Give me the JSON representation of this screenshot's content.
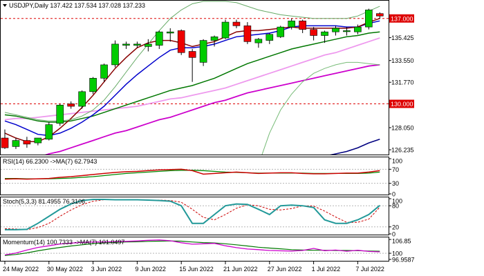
{
  "chart_data": {
    "type": "candlestick",
    "symbol": "USDJPY",
    "timeframe": "Daily",
    "ohlc_readout": {
      "open": "137.422",
      "high": "137.534",
      "low": "137.028",
      "close": "137.233"
    },
    "title": "USDJPY,Daily  137.422 137.534 137.028 137.233",
    "x_labels": [
      "24 May 2022",
      "30 May 2022",
      "3 Jun 2022",
      "9 Jun 2022",
      "15 Jun 2022",
      "21 Jun 2022",
      "27 Jun 2022",
      "1 Jul 2022",
      "7 Jul 2022"
    ],
    "x_label_index": [
      0,
      4,
      8,
      12,
      16,
      20,
      24,
      28,
      32
    ],
    "price_ticks": [
      "137.000",
      "135.425",
      "133.550",
      "131.770",
      "130.000",
      "128.050",
      "126.235"
    ],
    "price_tick_values": [
      137.0,
      135.425,
      133.55,
      131.77,
      130.0,
      128.05,
      126.235
    ],
    "price_range": [
      125.9,
      138.4
    ],
    "reference_levels": [
      {
        "value": 137.0,
        "label": "137.000",
        "color": "#dd0000"
      },
      {
        "value": 130.0,
        "label": "130.000",
        "color": "#dd0000"
      }
    ],
    "candles": [
      {
        "o": 127.2,
        "h": 127.9,
        "l": 126.3,
        "c": 126.4
      },
      {
        "o": 126.5,
        "h": 127.2,
        "l": 126.3,
        "c": 127.0
      },
      {
        "o": 127.0,
        "h": 127.3,
        "l": 126.4,
        "c": 126.7
      },
      {
        "o": 126.8,
        "h": 127.2,
        "l": 126.6,
        "c": 127.2
      },
      {
        "o": 127.1,
        "h": 128.5,
        "l": 127.0,
        "c": 128.3
      },
      {
        "o": 128.4,
        "h": 130.0,
        "l": 128.2,
        "c": 129.9
      },
      {
        "o": 130.0,
        "h": 130.2,
        "l": 129.6,
        "c": 129.8
      },
      {
        "o": 129.8,
        "h": 131.1,
        "l": 129.6,
        "c": 131.0
      },
      {
        "o": 131.0,
        "h": 132.2,
        "l": 130.8,
        "c": 132.1
      },
      {
        "o": 132.1,
        "h": 133.3,
        "l": 131.8,
        "c": 133.2
      },
      {
        "o": 133.2,
        "h": 135.2,
        "l": 133.0,
        "c": 134.9
      },
      {
        "o": 134.8,
        "h": 135.1,
        "l": 134.5,
        "c": 134.9
      },
      {
        "o": 134.8,
        "h": 135.1,
        "l": 134.6,
        "c": 134.9
      },
      {
        "o": 134.7,
        "h": 135.3,
        "l": 134.3,
        "c": 134.9
      },
      {
        "o": 134.8,
        "h": 136.0,
        "l": 134.5,
        "c": 135.9
      },
      {
        "o": 135.8,
        "h": 136.2,
        "l": 135.1,
        "c": 135.9
      },
      {
        "o": 136.0,
        "h": 136.1,
        "l": 134.0,
        "c": 134.2
      },
      {
        "o": 134.3,
        "h": 134.5,
        "l": 131.8,
        "c": 133.8
      },
      {
        "o": 133.4,
        "h": 135.3,
        "l": 133.1,
        "c": 135.2
      },
      {
        "o": 135.2,
        "h": 135.6,
        "l": 134.7,
        "c": 135.5
      },
      {
        "o": 135.4,
        "h": 136.9,
        "l": 135.3,
        "c": 136.7
      },
      {
        "o": 136.7,
        "h": 136.9,
        "l": 136.2,
        "c": 136.4
      },
      {
        "o": 136.4,
        "h": 136.7,
        "l": 134.9,
        "c": 135.1
      },
      {
        "o": 135.0,
        "h": 135.4,
        "l": 134.6,
        "c": 135.3
      },
      {
        "o": 135.2,
        "h": 135.8,
        "l": 134.9,
        "c": 135.7
      },
      {
        "o": 135.5,
        "h": 136.4,
        "l": 135.4,
        "c": 136.3
      },
      {
        "o": 136.3,
        "h": 137.0,
        "l": 136.1,
        "c": 136.8
      },
      {
        "o": 136.8,
        "h": 136.9,
        "l": 135.8,
        "c": 136.1
      },
      {
        "o": 136.1,
        "h": 136.3,
        "l": 135.2,
        "c": 135.6
      },
      {
        "o": 135.6,
        "h": 136.0,
        "l": 135.0,
        "c": 135.9
      },
      {
        "o": 135.9,
        "h": 136.4,
        "l": 135.6,
        "c": 136.2
      },
      {
        "o": 136.0,
        "h": 136.3,
        "l": 135.6,
        "c": 136.0
      },
      {
        "o": 135.9,
        "h": 136.5,
        "l": 135.7,
        "c": 136.3
      },
      {
        "o": 136.3,
        "h": 137.8,
        "l": 136.1,
        "c": 137.7
      },
      {
        "o": 137.4,
        "h": 137.5,
        "l": 137.0,
        "c": 137.2
      }
    ],
    "overlays": [
      {
        "color": "#000080",
        "width": 1.6,
        "values": [
          null,
          null,
          null,
          null,
          null,
          null,
          null,
          null,
          null,
          null,
          null,
          null,
          null,
          null,
          null,
          null,
          null,
          null,
          null,
          null,
          null,
          null,
          null,
          null,
          null,
          null,
          null,
          null,
          null,
          125.7,
          125.9,
          126.1,
          126.4,
          126.8,
          127.1
        ]
      },
      {
        "color": "#cc00cc",
        "width": 1.8,
        "values": [
          124.8,
          125.0,
          125.3,
          125.6,
          125.9,
          126.1,
          126.4,
          126.7,
          127.0,
          127.3,
          127.6,
          127.8,
          128.1,
          128.4,
          128.7,
          128.9,
          129.2,
          129.5,
          129.8,
          130.1,
          130.3,
          130.6,
          130.9,
          131.1,
          131.3,
          131.5,
          131.7,
          131.9,
          132.1,
          132.3,
          132.5,
          132.7,
          132.9,
          133.1,
          133.2
        ]
      },
      {
        "color": "#ee99ee",
        "width": 1.8,
        "values": [
          128.7,
          128.8,
          128.8,
          128.9,
          129.0,
          129.1,
          129.2,
          129.3,
          129.4,
          129.5,
          129.6,
          129.7,
          129.8,
          130.0,
          130.2,
          130.4,
          130.5,
          130.7,
          130.9,
          131.1,
          131.3,
          131.6,
          131.9,
          132.2,
          132.5,
          132.8,
          133.1,
          133.4,
          133.7,
          134.0,
          134.2,
          134.5,
          134.8,
          135.1,
          135.4
        ]
      },
      {
        "color": "#007700",
        "width": 1.5,
        "values": [
          129.1,
          129.0,
          128.8,
          128.6,
          128.5,
          128.5,
          128.6,
          128.8,
          129.0,
          129.3,
          129.6,
          129.9,
          130.2,
          130.5,
          130.8,
          131.1,
          131.3,
          131.5,
          131.8,
          132.1,
          132.5,
          132.9,
          133.3,
          133.6,
          133.9,
          134.2,
          134.5,
          134.7,
          134.9,
          135.1,
          135.3,
          135.5,
          135.6,
          135.8,
          135.9
        ]
      },
      {
        "color": "#0000cc",
        "width": 1.5,
        "values": [
          128.6,
          128.3,
          127.9,
          127.5,
          127.4,
          127.6,
          128.0,
          128.5,
          129.1,
          129.8,
          130.7,
          131.6,
          132.4,
          133.1,
          133.8,
          134.4,
          134.6,
          134.6,
          134.7,
          134.9,
          135.2,
          135.5,
          135.6,
          135.7,
          135.8,
          136.0,
          136.3,
          136.4,
          136.4,
          136.4,
          136.4,
          136.3,
          136.3,
          136.6,
          136.8
        ]
      },
      {
        "color": "#880000",
        "width": 1.5,
        "values": [
          127.6,
          127.2,
          126.9,
          126.9,
          127.3,
          128.0,
          128.8,
          129.7,
          130.7,
          131.8,
          132.9,
          133.8,
          134.6,
          135.0,
          135.2,
          135.2,
          135.0,
          134.7,
          134.9,
          135.1,
          135.5,
          135.9,
          136.0,
          136.0,
          136.1,
          136.2,
          136.3,
          136.2,
          136.2,
          136.2,
          136.2,
          136.2,
          136.3,
          136.7,
          137.0
        ]
      },
      {
        "color": "#77bb77",
        "width": 1,
        "values": [
          null,
          null,
          null,
          null,
          null,
          null,
          null,
          null,
          null,
          null,
          null,
          null,
          null,
          null,
          null,
          null,
          null,
          null,
          null,
          null,
          null,
          null,
          122.0,
          125.0,
          127.6,
          129.5,
          130.8,
          131.8,
          132.5,
          132.9,
          133.2,
          133.4,
          133.4,
          133.3,
          133.2
        ]
      },
      {
        "color": "#66aa66",
        "width": 1,
        "values": [
          129.3,
          129.1,
          128.9,
          128.7,
          128.6,
          128.6,
          128.7,
          129.0,
          129.5,
          130.3,
          131.4,
          132.6,
          133.8,
          134.9,
          136.0,
          137.0,
          137.7,
          138.2,
          138.4,
          138.4,
          138.4,
          138.3,
          138.0,
          137.7,
          137.5,
          137.3,
          137.2,
          137.1,
          137.0,
          137.0,
          137.0,
          137.0,
          137.2,
          137.6,
          138.0
        ]
      }
    ],
    "rsi": {
      "label": "RSI(14) 66.2300  ->MA(7) 62.7943",
      "ticks": [
        "70",
        "30",
        "0",
        "100"
      ],
      "tick_values": [
        70,
        30,
        0,
        100
      ],
      "range": [
        0,
        100
      ],
      "rsi_values": [
        42,
        43,
        42,
        43,
        44,
        47,
        49,
        52,
        55,
        58,
        61,
        63,
        64,
        66,
        68,
        69,
        70,
        66,
        56,
        58,
        60,
        62,
        60,
        58,
        59,
        60,
        60,
        58,
        57,
        57,
        58,
        59,
        59,
        62,
        66
      ],
      "ma_values": [
        44,
        44,
        43,
        43,
        43,
        44,
        45,
        47,
        49,
        52,
        55,
        58,
        60,
        62,
        64,
        66,
        67,
        67,
        66,
        64,
        62,
        61,
        60,
        59,
        59,
        59,
        59,
        59,
        58,
        58,
        58,
        58,
        58,
        59,
        62
      ]
    },
    "stoch": {
      "label": "Stoch(5,3,3) 81.4955 76.3106",
      "ticks": [
        "100",
        "80",
        "20",
        "0"
      ],
      "tick_values": [
        100,
        80,
        20,
        0
      ],
      "range": [
        0,
        100
      ],
      "k_values": [
        12,
        12,
        13,
        30,
        50,
        70,
        85,
        95,
        98,
        98,
        97,
        97,
        97,
        96,
        95,
        93,
        80,
        30,
        30,
        55,
        80,
        85,
        84,
        70,
        55,
        80,
        82,
        80,
        75,
        40,
        30,
        30,
        40,
        55,
        81
      ],
      "d_values": [
        15,
        14,
        12,
        18,
        30,
        50,
        68,
        83,
        93,
        97,
        97,
        97,
        97,
        96,
        96,
        95,
        90,
        70,
        47,
        40,
        55,
        73,
        83,
        80,
        70,
        68,
        72,
        80,
        79,
        65,
        48,
        33,
        33,
        42,
        76
      ]
    },
    "momentum": {
      "label": "Momentum(14) 100.7333  ->MA(7) 101.0497",
      "ticks": [
        "106.85",
        "100",
        "96.9587"
      ],
      "tick_values": [
        106.85,
        100.0,
        96.9587
      ],
      "range": [
        96.6,
        107.2
      ],
      "mom_values": [
        99.2,
        100.1,
        101.6,
        102.9,
        103.7,
        104.6,
        105.0,
        105.4,
        105.6,
        105.6,
        105.8,
        105.9,
        106.1,
        106.4,
        106.6,
        106.2,
        105.2,
        104.5,
        104.7,
        104.9,
        103.7,
        102.8,
        102.1,
        101.8,
        101.4,
        101.2,
        101.1,
        101.4,
        102.4,
        101.3,
        101.6,
        101.0,
        101.5,
        100.9,
        100.7
      ],
      "ma_values": [
        98.9,
        99.4,
        100.2,
        101.2,
        102.1,
        102.9,
        103.6,
        104.2,
        104.8,
        105.2,
        105.4,
        105.6,
        105.7,
        105.9,
        106.0,
        106.1,
        106.0,
        105.6,
        105.3,
        105.1,
        104.7,
        104.2,
        103.6,
        103.0,
        102.6,
        102.2,
        101.8,
        101.6,
        101.5,
        101.5,
        101.4,
        101.4,
        101.3,
        101.1,
        101.0
      ]
    },
    "colors": {
      "bull": "#00cc00",
      "bear": "#ee0000",
      "wick": "#000000",
      "ref_line": "#dd0000",
      "badge": "#dd0000",
      "rsi_line": "#cc0000",
      "rsi_ma": "#008800",
      "stoch_k": "#229999",
      "stoch_d": "#cc0000",
      "mom_line": "#cc00cc",
      "mom_ma": "#007700",
      "grid": "#aaaaaa"
    }
  }
}
